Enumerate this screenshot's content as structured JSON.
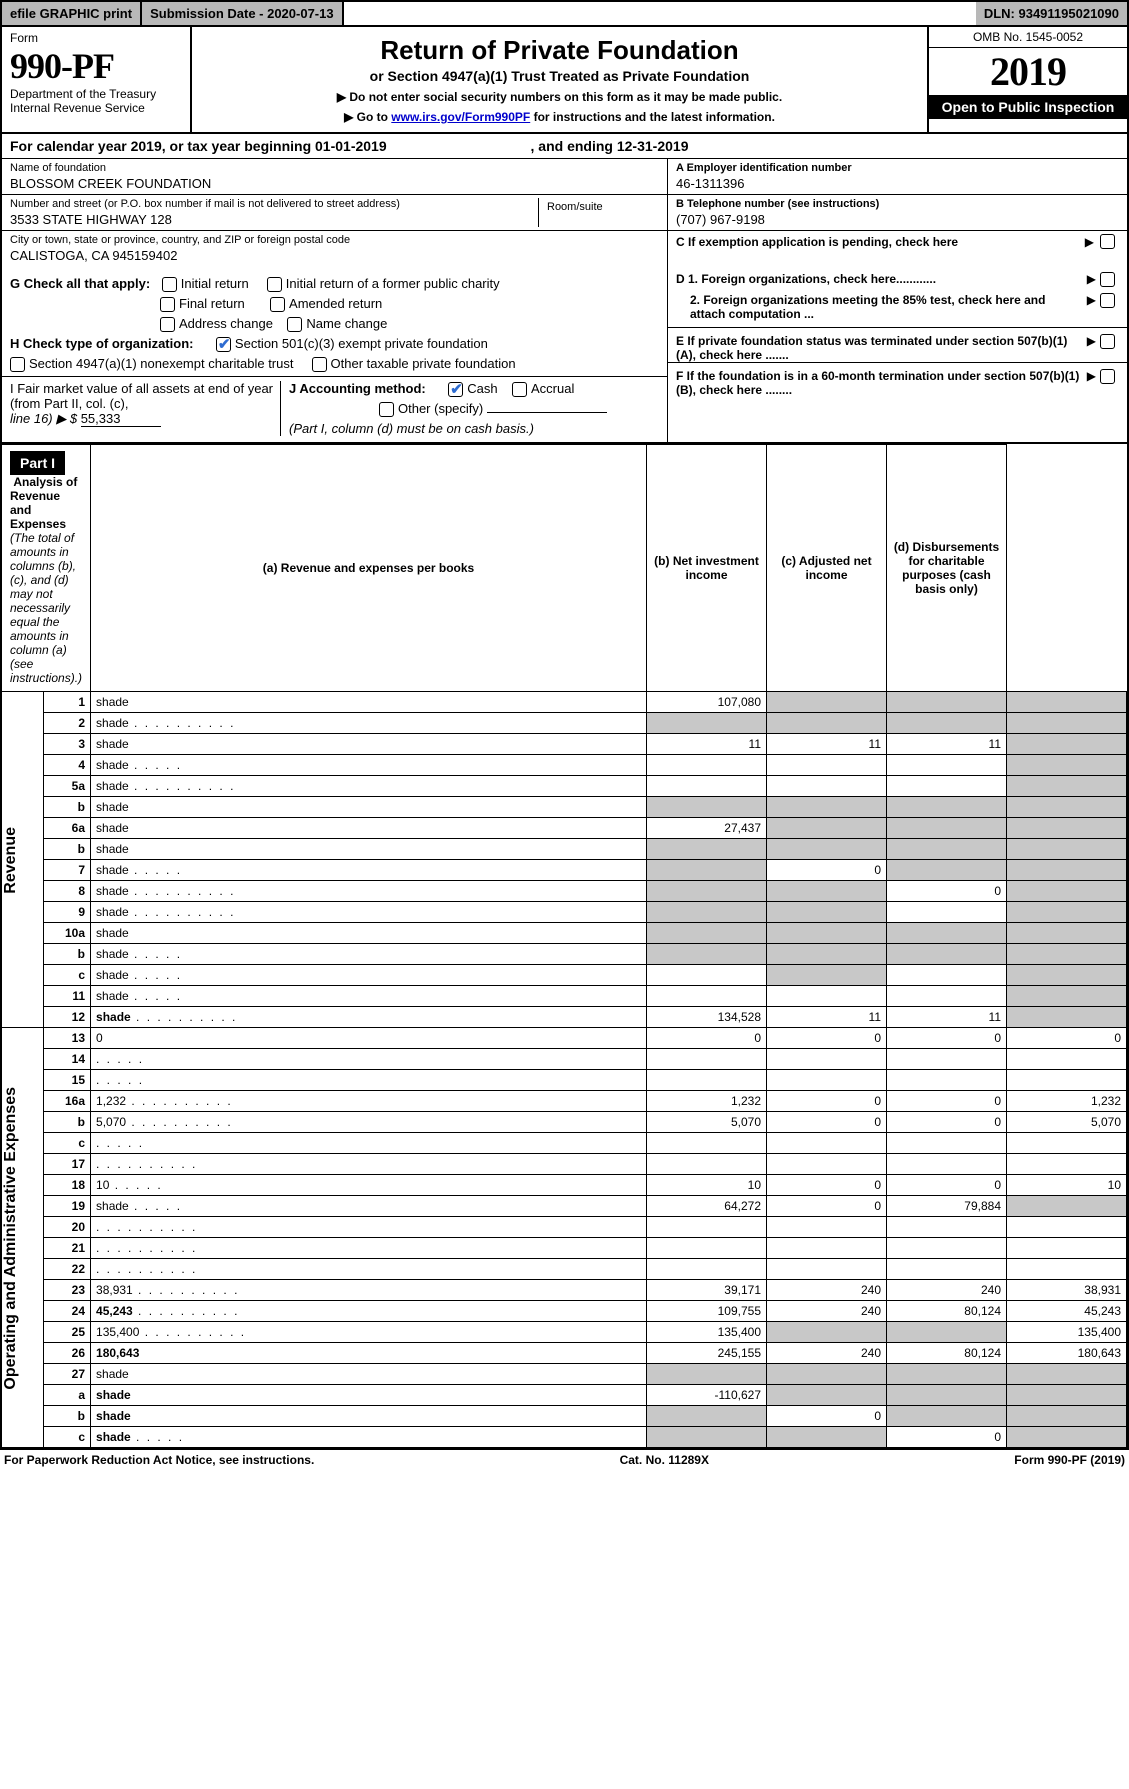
{
  "top": {
    "efile": "efile GRAPHIC print",
    "submission": "Submission Date - 2020-07-13",
    "dln": "DLN: 93491195021090"
  },
  "header": {
    "form_label": "Form",
    "form_no": "990-PF",
    "dept": "Department of the Treasury",
    "irs": "Internal Revenue Service",
    "title": "Return of Private Foundation",
    "subtitle": "or Section 4947(a)(1) Trust Treated as Private Foundation",
    "instr1": "▶ Do not enter social security numbers on this form as it may be made public.",
    "instr2_a": "▶ Go to ",
    "instr2_link": "www.irs.gov/Form990PF",
    "instr2_b": " for instructions and the latest information.",
    "omb": "OMB No. 1545-0052",
    "year": "2019",
    "inspection": "Open to Public Inspection"
  },
  "year_line": {
    "a": "For calendar year 2019, or tax year beginning 01-01-2019",
    "b": ", and ending 12-31-2019"
  },
  "id": {
    "name_lbl": "Name of foundation",
    "name": "BLOSSOM CREEK FOUNDATION",
    "addr_lbl": "Number and street (or P.O. box number if mail is not delivered to street address)",
    "addr": "3533 STATE HIGHWAY 128",
    "room_lbl": "Room/suite",
    "city_lbl": "City or town, state or province, country, and ZIP or foreign postal code",
    "city": "CALISTOGA, CA  945159402",
    "ein_lbl": "A Employer identification number",
    "ein": "46-1311396",
    "tel_lbl": "B Telephone number (see instructions)",
    "tel": "(707) 967-9198",
    "c": "C  If exemption application is pending, check here"
  },
  "checks": {
    "g": "G Check all that apply:",
    "g1": "Initial return",
    "g2": "Initial return of a former public charity",
    "g3": "Final return",
    "g4": "Amended return",
    "g5": "Address change",
    "g6": "Name change",
    "h": "H Check type of organization:",
    "h1": "Section 501(c)(3) exempt private foundation",
    "h2": "Section 4947(a)(1) nonexempt charitable trust",
    "h3": "Other taxable private foundation",
    "i1": "I Fair market value of all assets at end of year (from Part II, col. (c),",
    "i2": "line 16) ▶ $ ",
    "i_val": "55,333",
    "j": "J Accounting method:",
    "j1": "Cash",
    "j2": "Accrual",
    "j3": "Other (specify)",
    "j_note": "(Part I, column (d) must be on cash basis.)",
    "d1": "D 1. Foreign organizations, check here............",
    "d2": "2. Foreign organizations meeting the 85% test, check here and attach computation ...",
    "e": "E  If private foundation status was terminated under section 507(b)(1)(A), check here .......",
    "f": "F  If the foundation is in a 60-month termination under section 507(b)(1)(B), check here ........"
  },
  "part1": {
    "label": "Part I",
    "title": "Analysis of Revenue and Expenses",
    "title_note": " (The total of amounts in columns (b), (c), and (d) may not necessarily equal the amounts in column (a) (see instructions).)",
    "col_a": "(a)   Revenue and expenses per books",
    "col_b": "(b)  Net investment income",
    "col_c": "(c)  Adjusted net income",
    "col_d": "(d)  Disbursements for charitable purposes (cash basis only)",
    "vlabel_rev": "Revenue",
    "vlabel_exp": "Operating and Administrative Expenses"
  },
  "rows": [
    {
      "n": "1",
      "d": "shade",
      "a": "107,080",
      "b": "shade",
      "c": "shade"
    },
    {
      "n": "2",
      "d": "shade",
      "dots": 1,
      "a": "shade",
      "b": "shade",
      "c": "shade"
    },
    {
      "n": "3",
      "d": "shade",
      "a": "11",
      "b": "11",
      "c": "11"
    },
    {
      "n": "4",
      "d": "shade",
      "dots": "s",
      "a": "",
      "b": "",
      "c": ""
    },
    {
      "n": "5a",
      "d": "shade",
      "dots": 1,
      "a": "",
      "b": "",
      "c": ""
    },
    {
      "n": "b",
      "d": "shade",
      "a": "shade",
      "b": "shade",
      "c": "shade"
    },
    {
      "n": "6a",
      "d": "shade",
      "a": "27,437",
      "b": "shade",
      "c": "shade"
    },
    {
      "n": "b",
      "d": "shade",
      "a": "shade",
      "b": "shade",
      "c": "shade"
    },
    {
      "n": "7",
      "d": "shade",
      "dots": "s",
      "a": "shade",
      "b": "0",
      "c": "shade"
    },
    {
      "n": "8",
      "d": "shade",
      "dots": 1,
      "a": "shade",
      "b": "shade",
      "c": "0"
    },
    {
      "n": "9",
      "d": "shade",
      "dots": 1,
      "a": "shade",
      "b": "shade",
      "c": ""
    },
    {
      "n": "10a",
      "d": "shade",
      "a": "shade",
      "b": "shade",
      "c": "shade"
    },
    {
      "n": "b",
      "d": "shade",
      "dots": "s",
      "a": "shade",
      "b": "shade",
      "c": "shade"
    },
    {
      "n": "c",
      "d": "shade",
      "dots": "s",
      "a": "",
      "b": "shade",
      "c": ""
    },
    {
      "n": "11",
      "d": "shade",
      "dots": "s",
      "a": "",
      "b": "",
      "c": ""
    },
    {
      "n": "12",
      "d": "shade",
      "dots": 1,
      "bold": 1,
      "a": "134,528",
      "b": "11",
      "c": "11"
    }
  ],
  "exp_rows": [
    {
      "n": "13",
      "d": "0",
      "a": "0",
      "b": "0",
      "c": "0"
    },
    {
      "n": "14",
      "d": "",
      "dots": "s",
      "a": "",
      "b": "",
      "c": ""
    },
    {
      "n": "15",
      "d": "",
      "dots": "s",
      "a": "",
      "b": "",
      "c": ""
    },
    {
      "n": "16a",
      "d": "1,232",
      "dots": 1,
      "a": "1,232",
      "b": "0",
      "c": "0"
    },
    {
      "n": "b",
      "d": "5,070",
      "dots": 1,
      "a": "5,070",
      "b": "0",
      "c": "0"
    },
    {
      "n": "c",
      "d": "",
      "dots": "s",
      "a": "",
      "b": "",
      "c": ""
    },
    {
      "n": "17",
      "d": "",
      "dots": 1,
      "a": "",
      "b": "",
      "c": ""
    },
    {
      "n": "18",
      "d": "10",
      "dots": "s",
      "a": "10",
      "b": "0",
      "c": "0"
    },
    {
      "n": "19",
      "d": "shade",
      "dots": "s",
      "a": "64,272",
      "b": "0",
      "c": "79,884"
    },
    {
      "n": "20",
      "d": "",
      "dots": 1,
      "a": "",
      "b": "",
      "c": ""
    },
    {
      "n": "21",
      "d": "",
      "dots": 1,
      "a": "",
      "b": "",
      "c": ""
    },
    {
      "n": "22",
      "d": "",
      "dots": 1,
      "a": "",
      "b": "",
      "c": ""
    },
    {
      "n": "23",
      "d": "38,931",
      "dots": 1,
      "a": "39,171",
      "b": "240",
      "c": "240"
    },
    {
      "n": "24",
      "d": "45,243",
      "dots": 1,
      "bold": 1,
      "a": "109,755",
      "b": "240",
      "c": "80,124"
    },
    {
      "n": "25",
      "d": "135,400",
      "dots": 1,
      "a": "135,400",
      "b": "shade",
      "c": "shade"
    },
    {
      "n": "26",
      "d": "180,643",
      "bold": 1,
      "a": "245,155",
      "b": "240",
      "c": "80,124"
    },
    {
      "n": "27",
      "d": "shade",
      "a": "shade",
      "b": "shade",
      "c": "shade"
    },
    {
      "n": "a",
      "d": "shade",
      "bold": 1,
      "a": "-110,627",
      "b": "shade",
      "c": "shade"
    },
    {
      "n": "b",
      "d": "shade",
      "bold": 1,
      "a": "shade",
      "b": "0",
      "c": "shade"
    },
    {
      "n": "c",
      "d": "shade",
      "bold": 1,
      "dots": "s",
      "a": "shade",
      "b": "shade",
      "c": "0"
    }
  ],
  "footer": {
    "left": "For Paperwork Reduction Act Notice, see instructions.",
    "mid": "Cat. No. 11289X",
    "right": "Form 990-PF (2019)"
  }
}
